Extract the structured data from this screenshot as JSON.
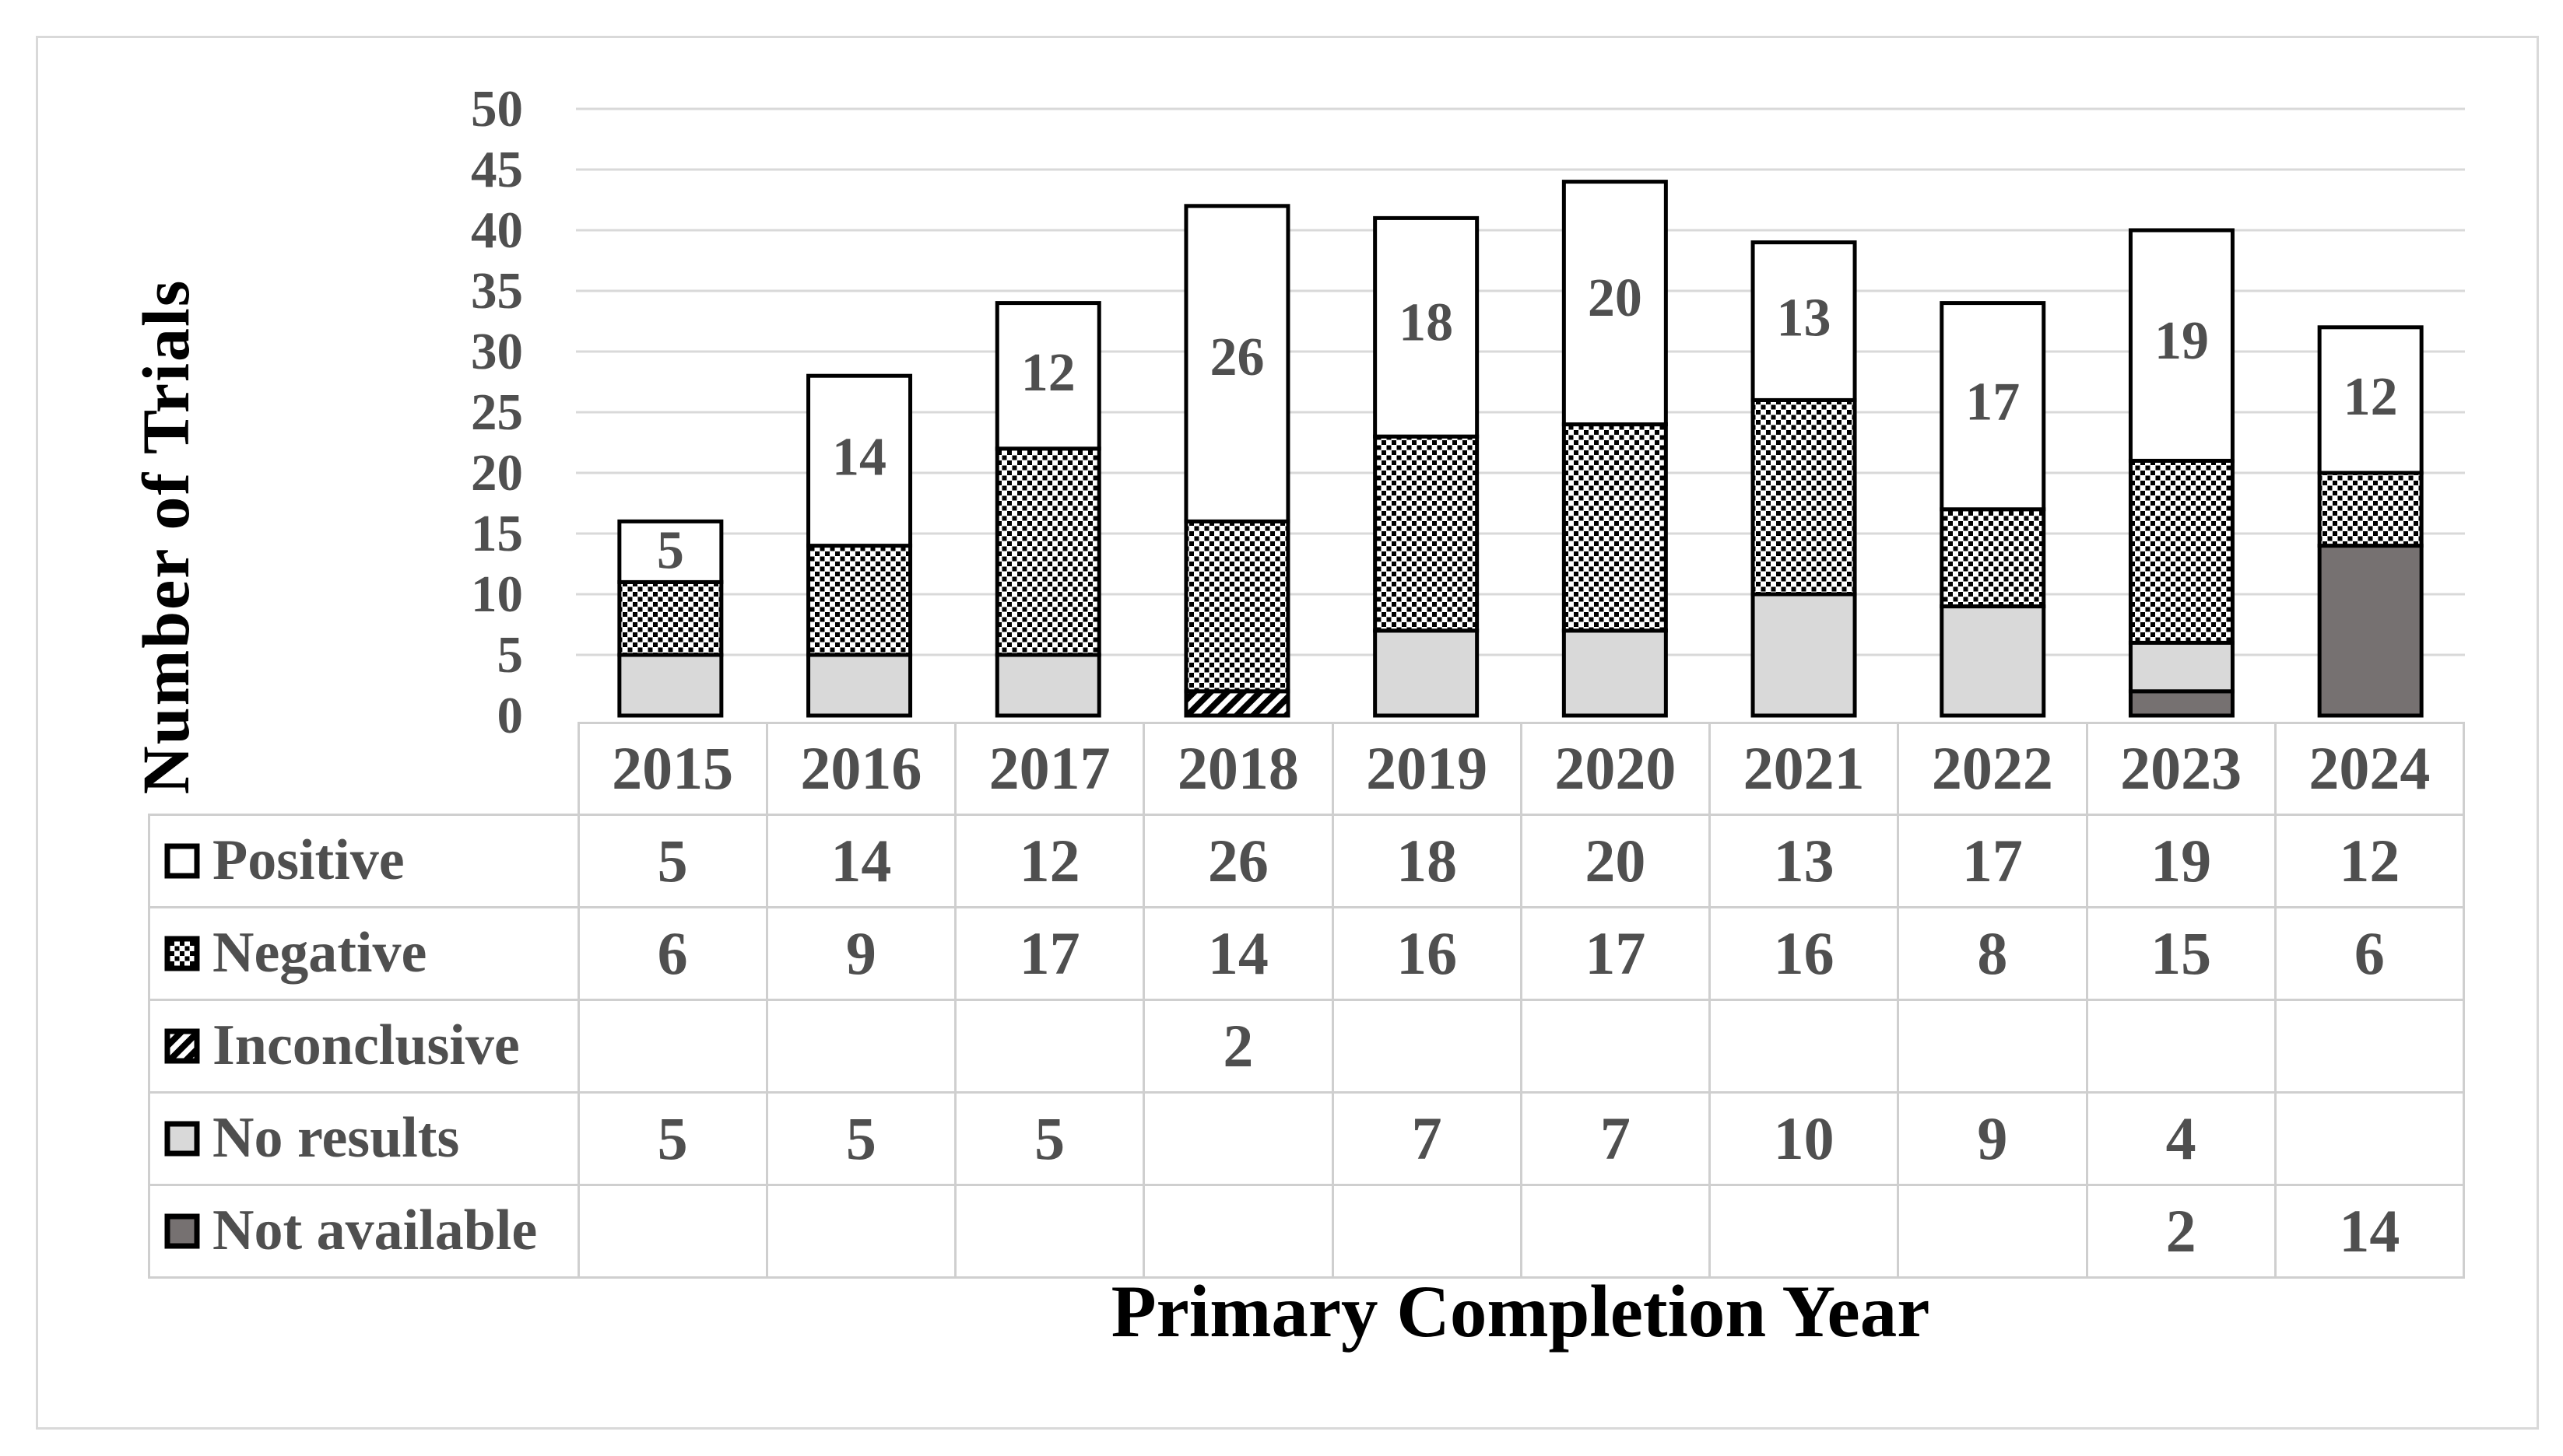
{
  "figure": {
    "kind": "stacked bar chart with data table",
    "title": ""
  },
  "chart_data": {
    "type": "bar",
    "stacked": true,
    "title": "",
    "xlabel": "Primary Completion Year",
    "ylabel": "Number of Trials",
    "ylim": [
      0,
      50
    ],
    "ytick_step": 5,
    "grid": true,
    "legend_position": "table-rows-left",
    "categories": [
      "2015",
      "2016",
      "2017",
      "2018",
      "2019",
      "2020",
      "2021",
      "2022",
      "2023",
      "2024"
    ],
    "series": [
      {
        "name": "Positive",
        "pattern": "plain-white",
        "show_value_labels": true,
        "values": [
          5,
          14,
          12,
          26,
          18,
          20,
          13,
          17,
          19,
          12
        ]
      },
      {
        "name": "Negative",
        "pattern": "dots",
        "values": [
          6,
          9,
          17,
          14,
          16,
          17,
          16,
          8,
          15,
          6
        ]
      },
      {
        "name": "Inconclusive",
        "pattern": "diagonal-hatch",
        "values": [
          null,
          null,
          null,
          2,
          null,
          null,
          null,
          null,
          null,
          null
        ]
      },
      {
        "name": "No results",
        "pattern": "light-gray",
        "values": [
          5,
          5,
          5,
          null,
          7,
          7,
          10,
          9,
          4,
          null
        ]
      },
      {
        "name": "Not available",
        "pattern": "dark-gray",
        "values": [
          null,
          null,
          null,
          null,
          null,
          null,
          null,
          null,
          2,
          14
        ]
      }
    ],
    "stack_order_bottom_to_top": [
      "Not available",
      "No results",
      "Inconclusive",
      "Negative",
      "Positive"
    ],
    "bar_value_labels": {
      "series": "Positive",
      "values": [
        5,
        14,
        12,
        26,
        18,
        20,
        13,
        17,
        19,
        12
      ]
    },
    "colors": {
      "white_fill": "#ffffff",
      "light_gray_fill": "#d9d9d9",
      "dark_gray_fill": "#767171",
      "bar_outline": "#000000",
      "text": "#4f4f4f",
      "gridline": "#d9d9d9",
      "table_border": "#cfcfcf",
      "figure_border": "#d9d9d9"
    }
  }
}
